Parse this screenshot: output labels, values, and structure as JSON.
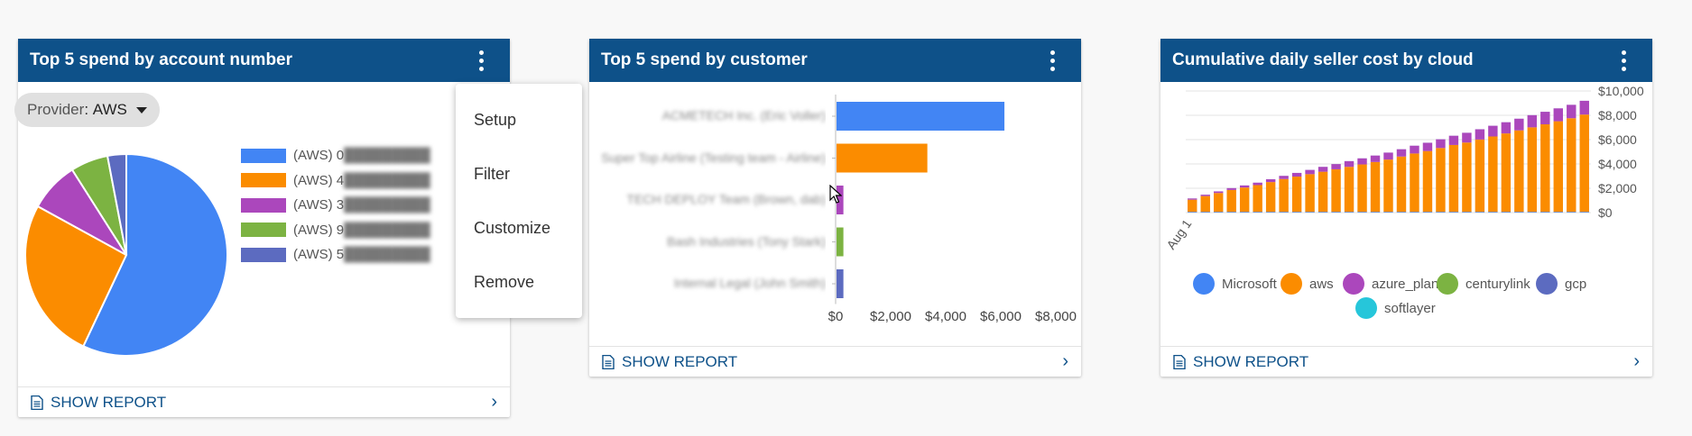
{
  "cards": [
    {
      "title": "Top 5 spend by account number",
      "chip_key": "Provider",
      "chip_value": "AWS",
      "footer_label": "SHOW REPORT",
      "legend": [
        {
          "label": "(AWS) 0",
          "color": "#4285f4"
        },
        {
          "label": "(AWS) 4",
          "color": "#fb8c00"
        },
        {
          "label": "(AWS) 3",
          "color": "#ab47bc"
        },
        {
          "label": "(AWS) 9",
          "color": "#7cb342"
        },
        {
          "label": "(AWS) 5",
          "color": "#5c6bc0"
        }
      ]
    },
    {
      "title": "Top 5 spend by customer",
      "footer_label": "SHOW REPORT"
    },
    {
      "title": "Cumulative daily seller cost by cloud",
      "footer_label": "SHOW REPORT",
      "legend": [
        {
          "label": "Microsoft",
          "color": "#4285f4"
        },
        {
          "label": "aws",
          "color": "#fb8c00"
        },
        {
          "label": "azure_plan",
          "color": "#ab47bc"
        },
        {
          "label": "centurylink",
          "color": "#7cb342"
        },
        {
          "label": "gcp",
          "color": "#5c6bc0"
        },
        {
          "label": "softlayer",
          "color": "#26c6da"
        }
      ]
    }
  ],
  "menu": {
    "items": [
      "Setup",
      "Filter",
      "Customize",
      "Remove"
    ]
  },
  "chart_data": [
    {
      "type": "pie",
      "series": [
        {
          "name": "(AWS) 0",
          "value": 57,
          "color": "#4285f4"
        },
        {
          "name": "(AWS) 4",
          "value": 26,
          "color": "#fb8c00"
        },
        {
          "name": "(AWS) 3",
          "value": 8,
          "color": "#ab47bc"
        },
        {
          "name": "(AWS) 9",
          "value": 6,
          "color": "#7cb342"
        },
        {
          "name": "(AWS) 5",
          "value": 3,
          "color": "#5c6bc0"
        }
      ]
    },
    {
      "type": "bar",
      "orientation": "horizontal",
      "categories": [
        "ACMETECH Inc. (Eric Voller)",
        "Super Top Airline (Testing team - Airline)",
        "TECH DEPLOY Team (Brown, dab)",
        "Bash Industries (Tony Stark)",
        "Internal Legal (John Smith)"
      ],
      "values": [
        6100,
        3300,
        250,
        250,
        250
      ],
      "colors": [
        "#4285f4",
        "#fb8c00",
        "#ab47bc",
        "#7cb342",
        "#5c6bc0"
      ],
      "xlim": [
        0,
        8000
      ],
      "xticks": [
        "$0",
        "$2,000",
        "$4,000",
        "$6,000",
        "$8,000"
      ]
    },
    {
      "type": "bar",
      "stacked": true,
      "x_first_label": "Aug 1",
      "ylim": [
        0,
        10000
      ],
      "yticks": [
        "$0",
        "$2,000",
        "$4,000",
        "$6,000",
        "$8,000",
        "$10,000"
      ],
      "x_count": 31,
      "series": [
        {
          "name": "Microsoft",
          "values": [
            60,
            60,
            60,
            60,
            60,
            60,
            60,
            60,
            60,
            60,
            60,
            60,
            60,
            60,
            60,
            60,
            60,
            60,
            60,
            60,
            60,
            60,
            60,
            60,
            60,
            60,
            60,
            60,
            60,
            60,
            60
          ]
        },
        {
          "name": "aws",
          "values": [
            1000,
            1300,
            1550,
            1800,
            2000,
            2200,
            2450,
            2700,
            2900,
            3100,
            3300,
            3500,
            3700,
            3900,
            4100,
            4300,
            4550,
            4800,
            5000,
            5250,
            5500,
            5700,
            5950,
            6200,
            6450,
            6700,
            6950,
            7200,
            7450,
            7700,
            8000
          ]
        },
        {
          "name": "azure_plan",
          "values": [
            100,
            110,
            130,
            150,
            170,
            200,
            230,
            260,
            300,
            350,
            400,
            430,
            470,
            500,
            530,
            570,
            600,
            640,
            680,
            720,
            760,
            800,
            840,
            880,
            920,
            960,
            1000,
            1030,
            1060,
            1100,
            1130
          ]
        },
        {
          "name": "centurylink",
          "values": [
            0,
            0,
            0,
            0,
            0,
            0,
            0,
            0,
            0,
            0,
            0,
            0,
            0,
            0,
            0,
            0,
            0,
            0,
            0,
            0,
            0,
            0,
            0,
            0,
            0,
            0,
            0,
            0,
            0,
            0,
            0
          ]
        },
        {
          "name": "gcp",
          "values": [
            5,
            5,
            5,
            5,
            5,
            5,
            5,
            5,
            5,
            5,
            5,
            5,
            5,
            5,
            5,
            5,
            5,
            5,
            5,
            5,
            5,
            5,
            5,
            5,
            5,
            5,
            5,
            5,
            5,
            5,
            5
          ]
        },
        {
          "name": "softlayer",
          "values": [
            0,
            0,
            0,
            0,
            0,
            0,
            0,
            0,
            0,
            0,
            0,
            0,
            0,
            0,
            0,
            0,
            0,
            0,
            0,
            0,
            0,
            0,
            0,
            0,
            0,
            0,
            0,
            0,
            0,
            0,
            0
          ]
        }
      ]
    }
  ]
}
